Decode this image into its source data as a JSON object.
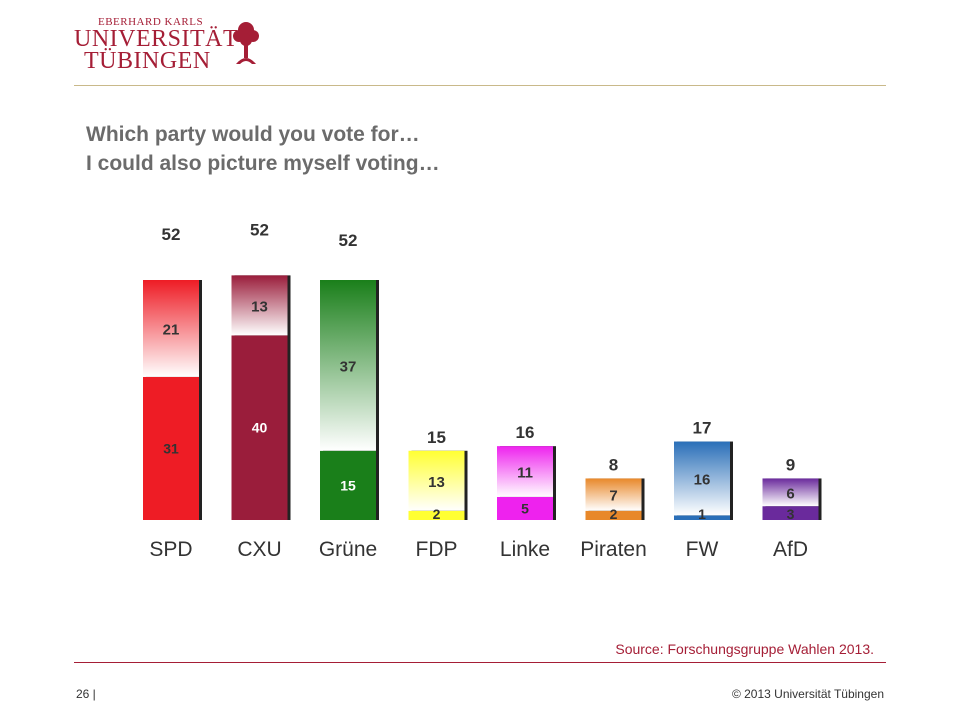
{
  "header": {
    "logo_line1": "EBERHARD KARLS",
    "logo_line2": "UNIVERSITÄT",
    "logo_line3": "TÜBINGEN",
    "logo_icon": "tree-emblem-icon"
  },
  "slide": {
    "title_line1": "Which party would you vote for…",
    "title_line2": "I could also picture myself voting…",
    "source": "Source: Forschungsgruppe Wahlen 2013.",
    "page_number": "26 |",
    "copyright": "© 2013 Universität Tübingen"
  },
  "colors": {
    "accent": "#a51e36",
    "rule": "#c9b98a"
  },
  "chart_data": {
    "type": "bar",
    "stacked": true,
    "categories": [
      "SPD",
      "CXU",
      "Grüne",
      "FDP",
      "Linke",
      "Piraten",
      "FW",
      "AfD"
    ],
    "totals": [
      52,
      52,
      52,
      15,
      16,
      8,
      17,
      9
    ],
    "series": [
      {
        "values": [
          31,
          40,
          15,
          2,
          5,
          2,
          1,
          3
        ]
      },
      {
        "values": [
          21,
          13,
          37,
          13,
          11,
          7,
          16,
          6
        ]
      }
    ],
    "colors": [
      "#ee1c25",
      "#9a1d3b",
      "#1a7f1a",
      "#ffff33",
      "#ee22ee",
      "#e8882a",
      "#2a6fb8",
      "#6a2a9c"
    ],
    "ylim": [
      0,
      52
    ],
    "grid": false,
    "legend": "none"
  }
}
